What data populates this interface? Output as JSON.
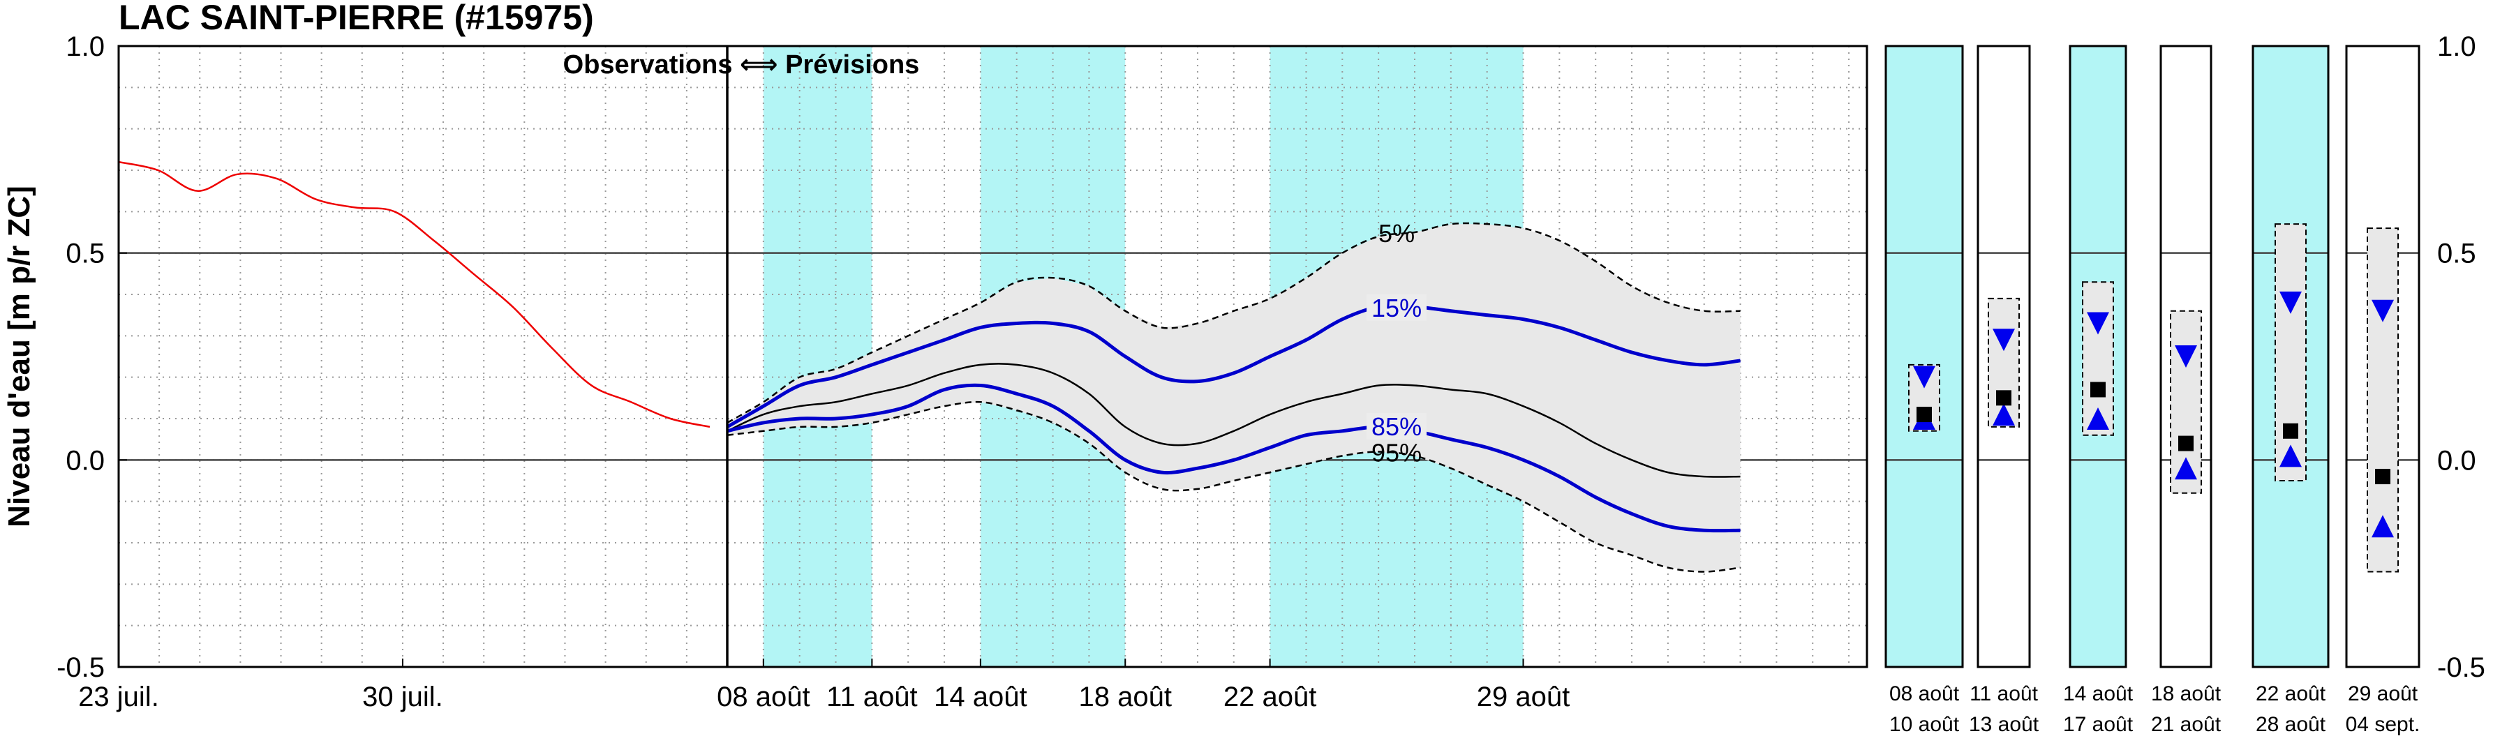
{
  "chart_data": {
    "type": "line",
    "title": "LAC SAINT-PIERRE (#15975)",
    "ylabel": "Niveau d'eau [m p/r ZC]",
    "ylim": [
      -0.5,
      1.0
    ],
    "yticks": [
      "1.0",
      "0.5",
      "0.0",
      "-0.5"
    ],
    "grid": true,
    "annotation": "Observations ⟺ Prévisions",
    "observations": {
      "x_range": [
        "2024-07-23",
        "2024-08-07"
      ],
      "xticks": [
        "23 juil.",
        "30 juil."
      ],
      "series": [
        {
          "name": "observed",
          "color": "#ee0000",
          "x": [
            0,
            1,
            2,
            3,
            4,
            5,
            6,
            7,
            8,
            9,
            10,
            11,
            12,
            13,
            14,
            15
          ],
          "values": [
            0.72,
            0.7,
            0.65,
            0.69,
            0.68,
            0.63,
            0.61,
            0.6,
            0.53,
            0.45,
            0.37,
            0.27,
            0.18,
            0.14,
            0.1,
            0.08
          ]
        }
      ]
    },
    "forecast": {
      "xticks": [
        "08 août",
        "11 août",
        "14 août",
        "18 août",
        "22 août",
        "29 août"
      ],
      "shaded_bands": [
        [
          "08 août",
          "11 août"
        ],
        [
          "14 août",
          "18 août"
        ],
        [
          "22 août",
          "29 août"
        ]
      ],
      "band_color": "#b3f5f5",
      "x": [
        0,
        1,
        2,
        3,
        4,
        5,
        6,
        7,
        8,
        9,
        10,
        11,
        12,
        13,
        14,
        15,
        16,
        17,
        18,
        19,
        20,
        21,
        22,
        23,
        24,
        25,
        26,
        27,
        28
      ],
      "series": [
        {
          "name": "5%",
          "color": "#000000",
          "dash": true,
          "values": [
            0.09,
            0.14,
            0.2,
            0.22,
            0.26,
            0.3,
            0.34,
            0.38,
            0.43,
            0.44,
            0.42,
            0.36,
            0.32,
            0.33,
            0.36,
            0.39,
            0.44,
            0.5,
            0.54,
            0.55,
            0.57,
            0.57,
            0.56,
            0.53,
            0.48,
            0.42,
            0.38,
            0.36,
            0.36
          ]
        },
        {
          "name": "15%",
          "color": "#0000cc",
          "values": [
            0.08,
            0.13,
            0.18,
            0.2,
            0.23,
            0.26,
            0.29,
            0.32,
            0.33,
            0.33,
            0.31,
            0.25,
            0.2,
            0.19,
            0.21,
            0.25,
            0.29,
            0.34,
            0.37,
            0.37,
            0.36,
            0.35,
            0.34,
            0.32,
            0.29,
            0.26,
            0.24,
            0.23,
            0.24
          ]
        },
        {
          "name": "median",
          "color": "#000000",
          "values": [
            0.07,
            0.11,
            0.13,
            0.14,
            0.16,
            0.18,
            0.21,
            0.23,
            0.23,
            0.21,
            0.16,
            0.08,
            0.04,
            0.04,
            0.07,
            0.11,
            0.14,
            0.16,
            0.18,
            0.18,
            0.17,
            0.16,
            0.13,
            0.09,
            0.04,
            0.0,
            -0.03,
            -0.04,
            -0.04
          ]
        },
        {
          "name": "85%",
          "color": "#0000cc",
          "values": [
            0.07,
            0.09,
            0.1,
            0.1,
            0.11,
            0.13,
            0.17,
            0.18,
            0.16,
            0.13,
            0.07,
            0.0,
            -0.03,
            -0.02,
            0.0,
            0.03,
            0.06,
            0.07,
            0.08,
            0.07,
            0.05,
            0.03,
            0.0,
            -0.04,
            -0.09,
            -0.13,
            -0.16,
            -0.17,
            -0.17
          ]
        },
        {
          "name": "95%",
          "color": "#000000",
          "dash": true,
          "values": [
            0.06,
            0.07,
            0.08,
            0.08,
            0.09,
            0.11,
            0.13,
            0.14,
            0.12,
            0.09,
            0.04,
            -0.03,
            -0.07,
            -0.07,
            -0.05,
            -0.03,
            -0.01,
            0.01,
            0.02,
            0.01,
            -0.02,
            -0.06,
            -0.1,
            -0.15,
            -0.2,
            -0.23,
            -0.26,
            -0.27,
            -0.26
          ]
        }
      ]
    },
    "weekly_ranges": [
      {
        "label_top": "08 août",
        "label_bottom": "10 août",
        "shaded": true,
        "box": [
          0.07,
          0.23
        ],
        "median": 0.11,
        "up": 0.1,
        "down": 0.2
      },
      {
        "label_top": "11 août",
        "label_bottom": "13 août",
        "shaded": false,
        "box": [
          0.08,
          0.39
        ],
        "median": 0.15,
        "up": 0.11,
        "down": 0.29
      },
      {
        "label_top": "14 août",
        "label_bottom": "17 août",
        "shaded": true,
        "box": [
          0.06,
          0.43
        ],
        "median": 0.17,
        "up": 0.1,
        "down": 0.33
      },
      {
        "label_top": "18 août",
        "label_bottom": "21 août",
        "shaded": false,
        "box": [
          -0.08,
          0.36
        ],
        "median": 0.04,
        "up": -0.02,
        "down": 0.25
      },
      {
        "label_top": "22 août",
        "label_bottom": "28 août",
        "shaded": true,
        "box": [
          -0.05,
          0.57
        ],
        "median": 0.07,
        "up": 0.01,
        "down": 0.38
      },
      {
        "label_top": "29 août",
        "label_bottom": "04 sept.",
        "shaded": false,
        "box": [
          -0.27,
          0.56
        ],
        "median": -0.04,
        "up": -0.16,
        "down": 0.36
      }
    ]
  }
}
